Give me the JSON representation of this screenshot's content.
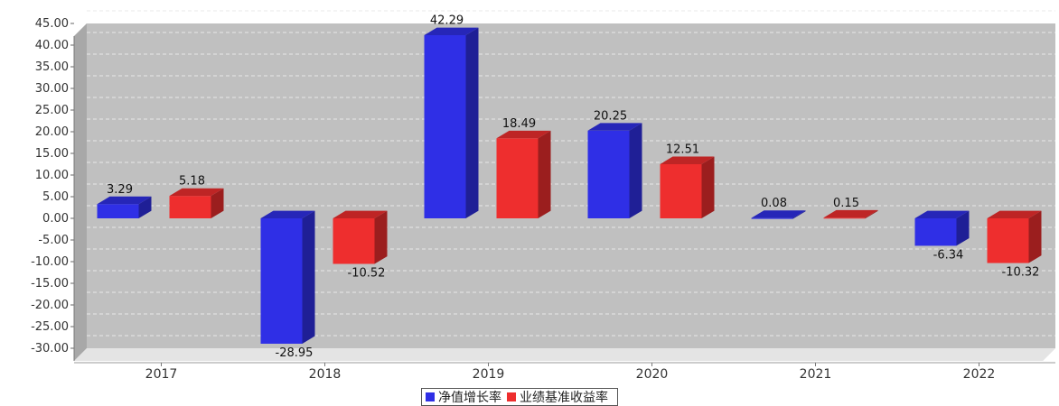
{
  "chart_data": {
    "type": "bar",
    "title": "",
    "categories": [
      "2017",
      "2018",
      "2019",
      "2020",
      "2021",
      "2022"
    ],
    "series": [
      {
        "name": "净值增长率",
        "color": "#2f2fe6",
        "values": [
          3.29,
          -28.95,
          42.29,
          20.25,
          0.08,
          -6.34
        ]
      },
      {
        "name": "业绩基准收益率",
        "color": "#ee2e2e",
        "values": [
          5.18,
          -10.52,
          18.49,
          12.51,
          0.15,
          -10.32
        ]
      }
    ],
    "value_labels": {
      "series0": [
        "3.29",
        "-28.95",
        "42.29",
        "20.25",
        "0.08",
        "-6.34"
      ],
      "series1": [
        "5.18",
        "-10.52",
        "18.49",
        "12.51",
        "0.15",
        "-10.32"
      ]
    },
    "ylim": [
      -30,
      45
    ],
    "yticks": [
      "45.00",
      "40.00",
      "35.00",
      "30.00",
      "25.00",
      "20.00",
      "15.00",
      "10.00",
      "5.00",
      "0.00",
      "-5.00",
      "-10.00",
      "-15.00",
      "-20.00",
      "-25.00",
      "-30.00"
    ],
    "grid": true,
    "legend_position": "bottom-center",
    "plot_background": "#c0c0c0"
  }
}
